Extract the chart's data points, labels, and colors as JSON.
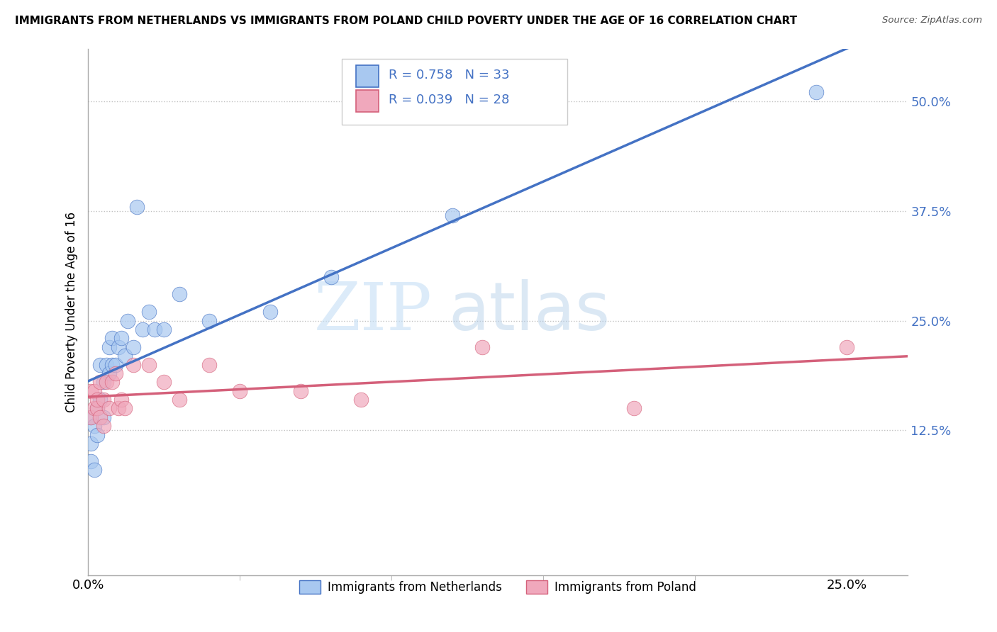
{
  "title": "IMMIGRANTS FROM NETHERLANDS VS IMMIGRANTS FROM POLAND CHILD POVERTY UNDER THE AGE OF 16 CORRELATION CHART",
  "source": "Source: ZipAtlas.com",
  "ylabel_label": "Child Poverty Under the Age of 16",
  "legend_netherlands": "Immigrants from Netherlands",
  "legend_poland": "Immigrants from Poland",
  "R_netherlands": 0.758,
  "N_netherlands": 33,
  "R_poland": 0.039,
  "N_poland": 28,
  "color_netherlands": "#a8c8f0",
  "color_poland": "#f0a8bc",
  "color_line_netherlands": "#4472c4",
  "color_line_poland": "#d4607a",
  "watermark_zip": "ZIP",
  "watermark_atlas": "atlas",
  "xlim": [
    0.0,
    0.27
  ],
  "ylim": [
    -0.04,
    0.56
  ],
  "nl_x": [
    0.001,
    0.001,
    0.001,
    0.002,
    0.002,
    0.003,
    0.003,
    0.004,
    0.004,
    0.005,
    0.005,
    0.006,
    0.007,
    0.007,
    0.008,
    0.008,
    0.009,
    0.01,
    0.011,
    0.012,
    0.013,
    0.015,
    0.016,
    0.018,
    0.02,
    0.022,
    0.025,
    0.03,
    0.04,
    0.06,
    0.08,
    0.12,
    0.24
  ],
  "nl_y": [
    0.14,
    0.11,
    0.09,
    0.13,
    0.08,
    0.15,
    0.12,
    0.2,
    0.16,
    0.14,
    0.18,
    0.2,
    0.19,
    0.22,
    0.2,
    0.23,
    0.2,
    0.22,
    0.23,
    0.21,
    0.25,
    0.22,
    0.38,
    0.24,
    0.26,
    0.24,
    0.24,
    0.28,
    0.25,
    0.26,
    0.3,
    0.37,
    0.51
  ],
  "pl_x": [
    0.001,
    0.001,
    0.002,
    0.002,
    0.003,
    0.003,
    0.004,
    0.004,
    0.005,
    0.005,
    0.006,
    0.007,
    0.008,
    0.009,
    0.01,
    0.011,
    0.012,
    0.015,
    0.02,
    0.025,
    0.03,
    0.04,
    0.05,
    0.07,
    0.09,
    0.13,
    0.18,
    0.25
  ],
  "pl_y": [
    0.14,
    0.17,
    0.15,
    0.17,
    0.15,
    0.16,
    0.18,
    0.14,
    0.13,
    0.16,
    0.18,
    0.15,
    0.18,
    0.19,
    0.15,
    0.16,
    0.15,
    0.2,
    0.2,
    0.18,
    0.16,
    0.2,
    0.17,
    0.17,
    0.16,
    0.22,
    0.15,
    0.22
  ]
}
